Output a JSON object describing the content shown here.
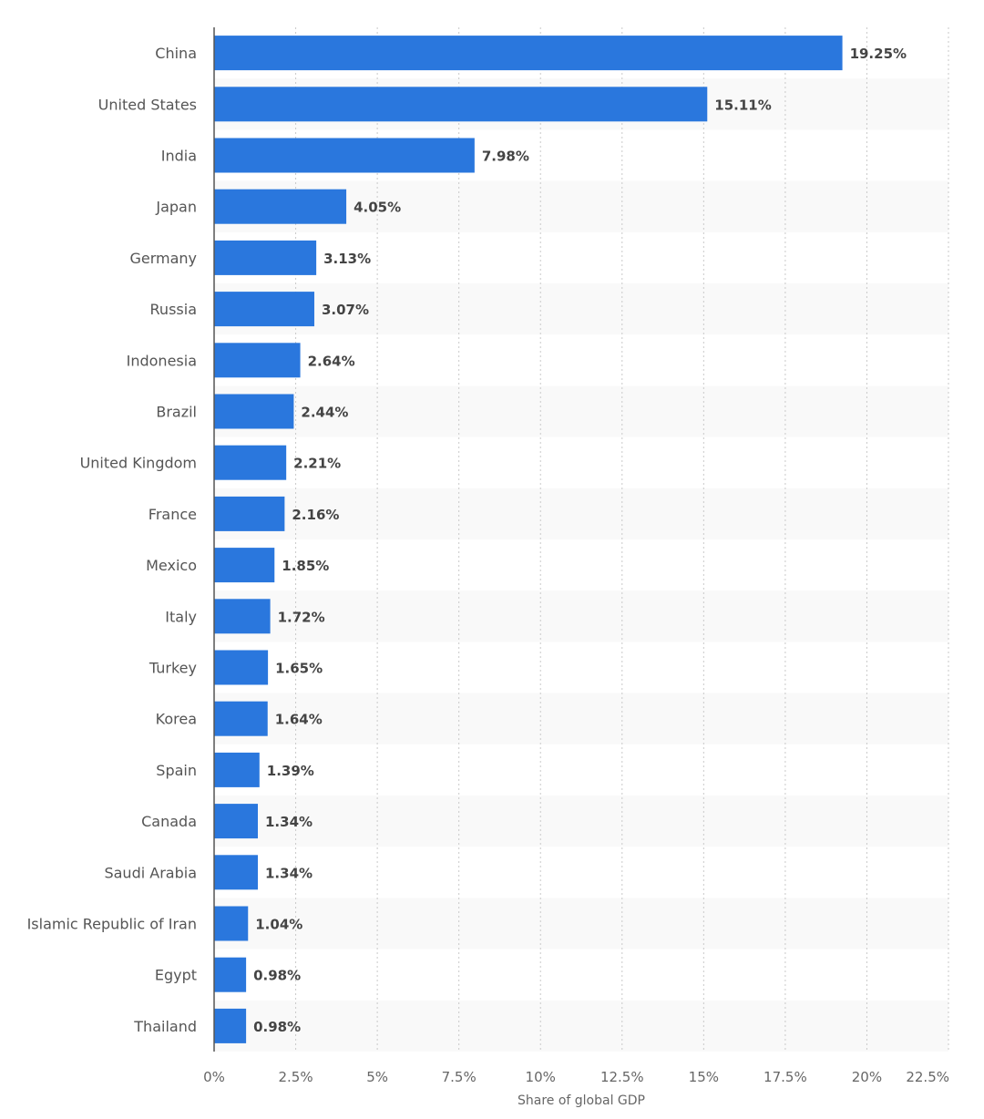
{
  "chart_data": {
    "type": "bar",
    "orientation": "horizontal",
    "title": "",
    "xlabel": "Share of global GDP",
    "ylabel": "",
    "xlim": [
      0,
      22.5
    ],
    "grid": true,
    "bar_color": "#2a77dd",
    "band_color": "#f9f9f9",
    "x_ticks": [
      0,
      2.5,
      5,
      7.5,
      10,
      12.5,
      15,
      17.5,
      20,
      22.5
    ],
    "x_tick_labels": [
      "0%",
      "2.5%",
      "5%",
      "7.5%",
      "10%",
      "12.5%",
      "15%",
      "17.5%",
      "20%",
      "22.5%"
    ],
    "categories": [
      "China",
      "United States",
      "India",
      "Japan",
      "Germany",
      "Russia",
      "Indonesia",
      "Brazil",
      "United Kingdom",
      "France",
      "Mexico",
      "Italy",
      "Turkey",
      "Korea",
      "Spain",
      "Canada",
      "Saudi Arabia",
      "Islamic Republic of Iran",
      "Egypt",
      "Thailand"
    ],
    "values": [
      19.25,
      15.11,
      7.98,
      4.05,
      3.13,
      3.07,
      2.64,
      2.44,
      2.21,
      2.16,
      1.85,
      1.72,
      1.65,
      1.64,
      1.39,
      1.34,
      1.34,
      1.04,
      0.98,
      0.98
    ],
    "value_labels": [
      "19.25%",
      "15.11%",
      "7.98%",
      "4.05%",
      "3.13%",
      "3.07%",
      "2.64%",
      "2.44%",
      "2.21%",
      "2.16%",
      "1.85%",
      "1.72%",
      "1.65%",
      "1.64%",
      "1.39%",
      "1.34%",
      "1.34%",
      "1.04%",
      "0.98%",
      "0.98%"
    ]
  }
}
